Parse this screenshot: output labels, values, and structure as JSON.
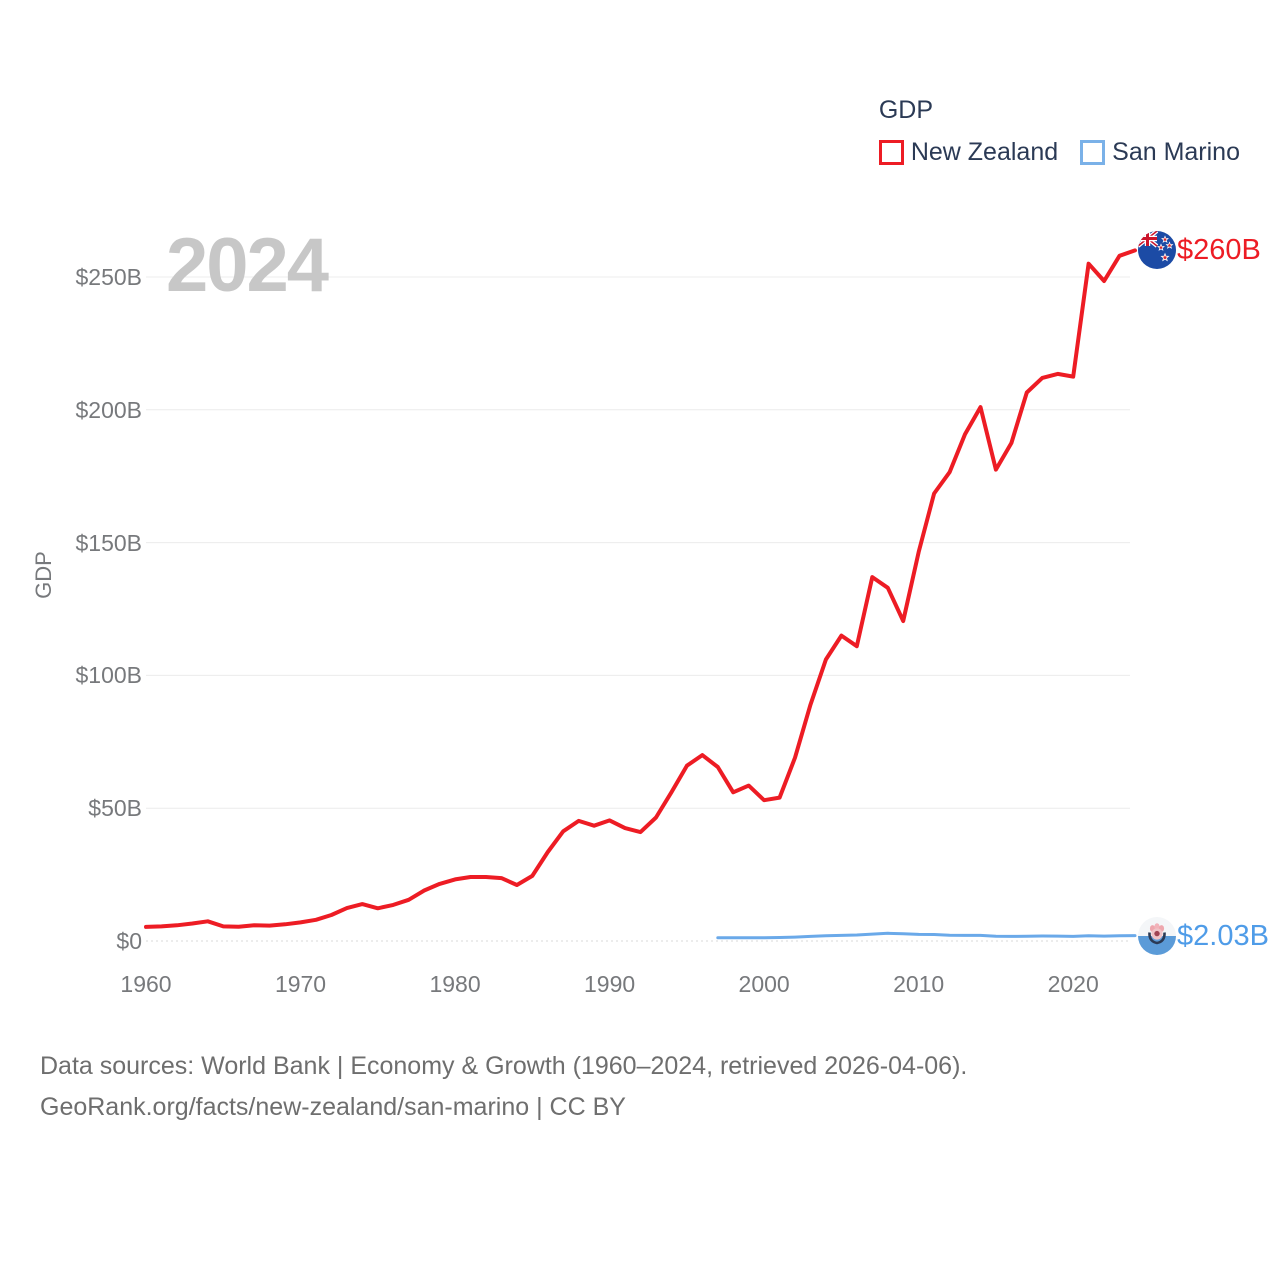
{
  "legend": {
    "title": "GDP",
    "items": [
      {
        "label": "New Zealand",
        "color": "#ed1c24"
      },
      {
        "label": "San Marino",
        "color": "#7ab1e8"
      }
    ]
  },
  "watermark_year": "2024",
  "footer": {
    "line1": "Data sources: World Bank | Economy & Growth (1960–2024, retrieved 2026-04-06).",
    "line2": "GeoRank.org/facts/new-zealand/san-marino | CC BY"
  },
  "chart_data": {
    "type": "line",
    "title": "GDP",
    "ylabel": "GDP",
    "x_range": [
      1960,
      2024
    ],
    "y_range": [
      0,
      250
    ],
    "grid": true,
    "legend_position": "top-right",
    "x_ticks": [
      1960,
      1970,
      1980,
      1990,
      2000,
      2010,
      2020
    ],
    "y_ticks": [
      {
        "value": 0,
        "label": "$0"
      },
      {
        "value": 50,
        "label": "$50B"
      },
      {
        "value": 100,
        "label": "$100B"
      },
      {
        "value": 150,
        "label": "$150B"
      },
      {
        "value": 200,
        "label": "$200B"
      },
      {
        "value": 250,
        "label": "$250B"
      }
    ],
    "series": [
      {
        "name": "New Zealand",
        "color": "#ed1c24",
        "label_color": "#ed1c24",
        "flag": "new-zealand-flag",
        "end_label": "$260B",
        "start_year": 1960,
        "values": [
          5.3,
          5.5,
          5.9,
          6.6,
          7.4,
          5.5,
          5.4,
          5.9,
          5.8,
          6.3,
          7.0,
          8.0,
          9.8,
          12.4,
          13.9,
          12.3,
          13.6,
          15.5,
          19.0,
          21.5,
          23.2,
          24.1,
          24.1,
          23.7,
          21.1,
          24.5,
          33.5,
          41.3,
          45.2,
          43.4,
          45.4,
          42.5,
          41.0,
          46.5,
          56.0,
          66.0,
          70.0,
          65.5,
          56.0,
          58.5,
          53.0,
          54.0,
          69.0,
          89.0,
          106.0,
          115.0,
          111.0,
          137.0,
          133.0,
          120.5,
          146.5,
          168.5,
          176.5,
          190.8,
          201.0,
          177.5,
          187.5,
          206.5,
          212.0,
          213.5,
          212.5,
          255.0,
          248.5,
          258.0,
          260.0
        ]
      },
      {
        "name": "San Marino",
        "color": "#6aa9e9",
        "label_color": "#4f9ce8",
        "flag": "san-marino-flag",
        "end_label": "$2.03B",
        "start_year": 1997,
        "values": [
          1.2,
          1.25,
          1.25,
          1.2,
          1.3,
          1.45,
          1.75,
          2.0,
          2.1,
          2.25,
          2.6,
          2.9,
          2.7,
          2.5,
          2.45,
          2.2,
          2.1,
          2.1,
          1.8,
          1.75,
          1.8,
          1.9,
          1.85,
          1.75,
          1.95,
          1.85,
          1.95,
          2.03
        ]
      }
    ]
  }
}
